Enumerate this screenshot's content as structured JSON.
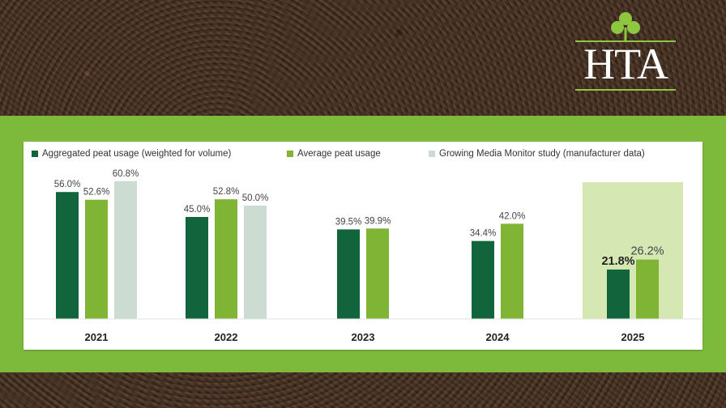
{
  "brand": {
    "logo_text": "HTA",
    "logo_icon": "shamrock-icon",
    "accent_color": "#8dc63f"
  },
  "chart_data": {
    "type": "bar",
    "categories": [
      "2021",
      "2022",
      "2023",
      "2024",
      "2025"
    ],
    "series": [
      {
        "name": "Aggregated peat usage (weighted for volume)",
        "color": "#11643c",
        "values": [
          56.0,
          45.0,
          39.5,
          34.4,
          21.8
        ],
        "labels": [
          "56.0%",
          "45.0%",
          "39.5%",
          "34.4%",
          "21.8%"
        ]
      },
      {
        "name": "Average peat usage",
        "color": "#7fb435",
        "values": [
          52.6,
          52.8,
          39.9,
          42.0,
          26.2
        ],
        "labels": [
          "52.6%",
          "52.8%",
          "39.9%",
          "42.0%",
          "26.2%"
        ]
      },
      {
        "name": "Growing Media Monitor study (manufacturer data)",
        "color": "#ccdcd2",
        "values": [
          60.8,
          50.0,
          null,
          null,
          null
        ],
        "labels": [
          "60.8%",
          "50.0%",
          "",
          "",
          ""
        ]
      }
    ],
    "highlight_category": "2025",
    "highlight_color": "#d5e8b4",
    "ylim": [
      0,
      62
    ],
    "grid": false,
    "legend_position": "top",
    "xlabel": "",
    "ylabel": ""
  }
}
